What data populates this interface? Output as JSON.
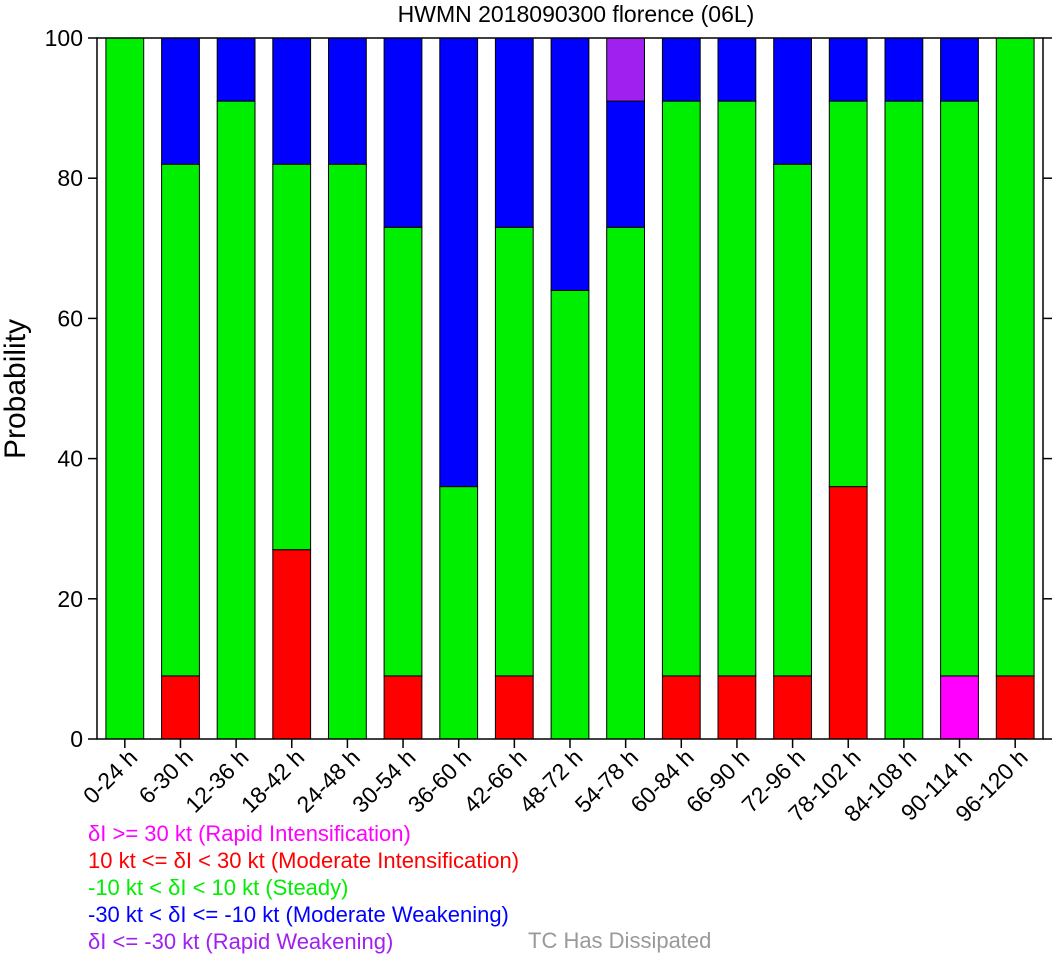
{
  "chart_data": {
    "type": "bar",
    "stacked": true,
    "title": "HWMN 2018090300 florence (06L)",
    "xlabel": "",
    "ylabel": "Probability",
    "ylim": [
      0,
      100
    ],
    "yticks": [
      0,
      20,
      40,
      60,
      80,
      100
    ],
    "grid": false,
    "categories": [
      "0-24 h",
      "6-30 h",
      "12-36 h",
      "18-42 h",
      "24-48 h",
      "30-54 h",
      "36-60 h",
      "42-66 h",
      "48-72 h",
      "54-78 h",
      "60-84 h",
      "66-90 h",
      "72-96 h",
      "78-102 h",
      "84-108 h",
      "90-114 h",
      "96-120 h"
    ],
    "series": [
      {
        "key": "ri",
        "color": "#ff00ff",
        "values": [
          0,
          0,
          0,
          0,
          0,
          0,
          0,
          0,
          0,
          0,
          0,
          0,
          0,
          0,
          0,
          9,
          0
        ]
      },
      {
        "key": "mi",
        "color": "#ff0000",
        "values": [
          0,
          9,
          0,
          27,
          0,
          9,
          0,
          9,
          0,
          0,
          9,
          9,
          9,
          36,
          0,
          0,
          9
        ]
      },
      {
        "key": "steady",
        "color": "#00ee00",
        "values": [
          100,
          73,
          91,
          55,
          82,
          64,
          36,
          64,
          64,
          73,
          82,
          82,
          73,
          55,
          91,
          82,
          91
        ]
      },
      {
        "key": "mw",
        "color": "#0000ff",
        "values": [
          0,
          18,
          9,
          18,
          18,
          27,
          64,
          27,
          36,
          18,
          9,
          9,
          18,
          9,
          9,
          9,
          0
        ]
      },
      {
        "key": "rw",
        "color": "#a020f0",
        "values": [
          0,
          0,
          0,
          0,
          0,
          0,
          0,
          0,
          0,
          9,
          0,
          0,
          0,
          0,
          0,
          0,
          0
        ]
      }
    ]
  },
  "legend": {
    "items": [
      {
        "text": "δI >= 30 kt (Rapid Intensification)",
        "color": "#ff00ff"
      },
      {
        "text": "10 kt <= δI < 30 kt (Moderate Intensification)",
        "color": "#ff0000"
      },
      {
        "text": "-10 kt < δI < 10 kt (Steady)",
        "color": "#00ee00"
      },
      {
        "text": "-30 kt < δI <= -10 kt (Moderate Weakening)",
        "color": "#0000ff"
      },
      {
        "text": "δI <= -30 kt (Rapid Weakening)",
        "color": "#a020f0"
      }
    ],
    "dissipated": {
      "text": "TC Has Dissipated",
      "color": "#999999"
    }
  }
}
